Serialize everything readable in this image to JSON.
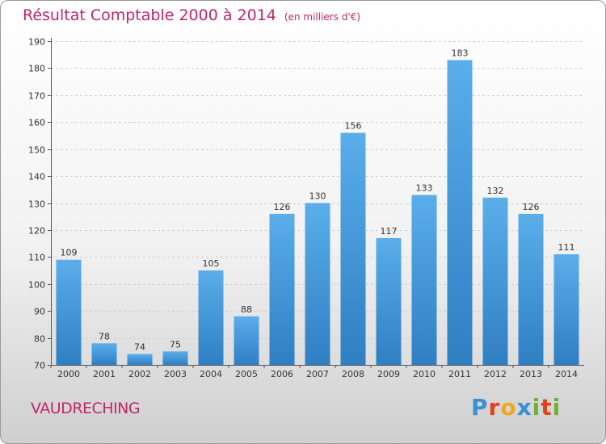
{
  "title": "Résultat Comptable 2000 à 2014",
  "unit_note": "(en milliers d'€)",
  "city": "VAUDRECHING",
  "brand": "Proxiti",
  "colors": {
    "accent": "#c0266a",
    "bar_light": "#5aaeea",
    "bar_dark": "#2f7fc3"
  },
  "chart_data": {
    "type": "bar",
    "title": "Résultat Comptable 2000 à 2014",
    "subtitle": "(en milliers d'€)",
    "xlabel": "",
    "ylabel": "",
    "categories": [
      "2000",
      "2001",
      "2002",
      "2003",
      "2004",
      "2005",
      "2006",
      "2007",
      "2008",
      "2009",
      "2010",
      "2011",
      "2012",
      "2013",
      "2014"
    ],
    "values": [
      109,
      78,
      74,
      75,
      105,
      88,
      126,
      130,
      156,
      117,
      133,
      183,
      132,
      126,
      111
    ],
    "ylim": [
      70,
      190
    ],
    "yticks": [
      70,
      80,
      90,
      100,
      110,
      120,
      130,
      140,
      150,
      160,
      170,
      180,
      190
    ],
    "grid": true,
    "legend": "none"
  }
}
